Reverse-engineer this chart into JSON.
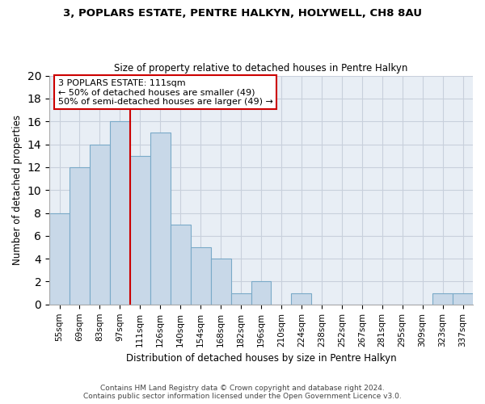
{
  "title": "3, POPLARS ESTATE, PENTRE HALKYN, HOLYWELL, CH8 8AU",
  "subtitle": "Size of property relative to detached houses in Pentre Halkyn",
  "xlabel": "Distribution of detached houses by size in Pentre Halkyn",
  "ylabel": "Number of detached properties",
  "bar_labels": [
    "55sqm",
    "69sqm",
    "83sqm",
    "97sqm",
    "111sqm",
    "126sqm",
    "140sqm",
    "154sqm",
    "168sqm",
    "182sqm",
    "196sqm",
    "210sqm",
    "224sqm",
    "238sqm",
    "252sqm",
    "267sqm",
    "281sqm",
    "295sqm",
    "309sqm",
    "323sqm",
    "337sqm"
  ],
  "bar_heights": [
    8,
    12,
    14,
    16,
    13,
    15,
    7,
    5,
    4,
    1,
    2,
    0,
    1,
    0,
    0,
    0,
    0,
    0,
    0,
    1,
    1
  ],
  "bar_color": "#c8d8e8",
  "bar_edgecolor": "#7aaac8",
  "vline_x_index": 4,
  "vline_color": "#cc0000",
  "annotation_title": "3 POPLARS ESTATE: 111sqm",
  "annotation_line1": "← 50% of detached houses are smaller (49)",
  "annotation_line2": "50% of semi-detached houses are larger (49) →",
  "annotation_box_color": "#ffffff",
  "annotation_box_edgecolor": "#cc0000",
  "ylim": [
    0,
    20
  ],
  "yticks": [
    0,
    2,
    4,
    6,
    8,
    10,
    12,
    14,
    16,
    18,
    20
  ],
  "footer1": "Contains HM Land Registry data © Crown copyright and database right 2024.",
  "footer2": "Contains public sector information licensed under the Open Government Licence v3.0.",
  "bg_color": "#ffffff",
  "plot_bg_color": "#e8eef5",
  "grid_color": "#c8d0dc"
}
